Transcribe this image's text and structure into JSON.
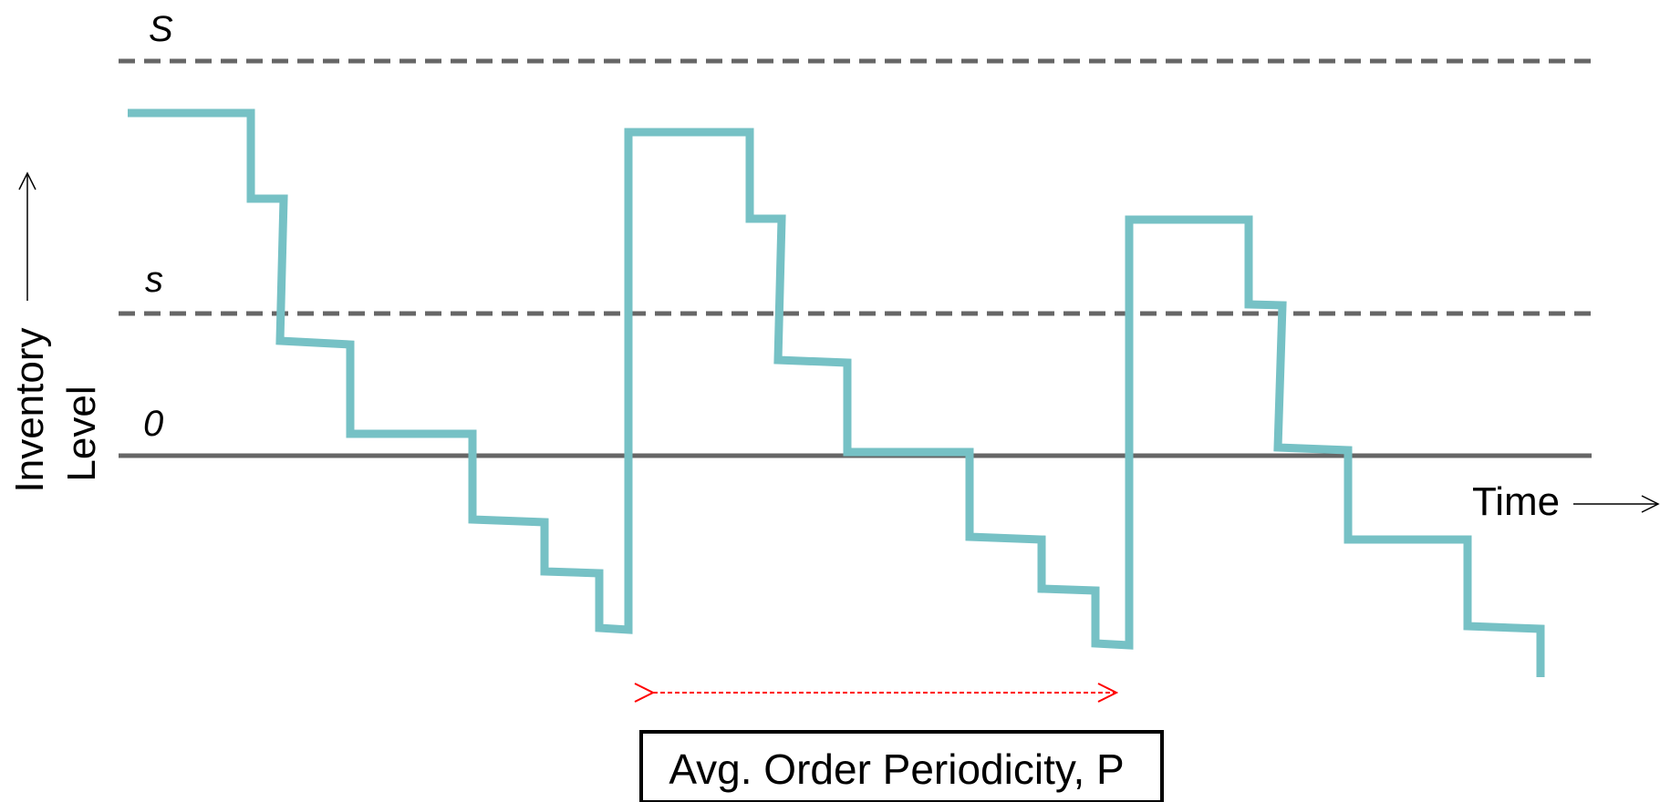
{
  "levels": {
    "S": "S",
    "s": "s",
    "zero": "0"
  },
  "axes": {
    "y_label_line1": "Inventory",
    "y_label_line2": "Level",
    "x_label": "Time"
  },
  "caption": "Avg. Order Periodicity, P",
  "colors": {
    "inventory_line": "#76c1c5",
    "threshold_line": "#666666",
    "zero_line": "#666666",
    "period_arrow": "#ff0000",
    "caption_border": "#000000"
  }
}
